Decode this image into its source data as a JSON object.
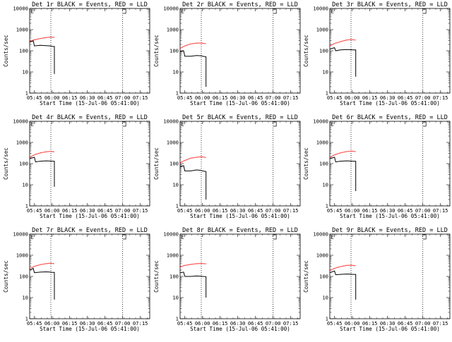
{
  "chart_data": {
    "type": "line",
    "layout": "3x3 grid of panels",
    "shared": {
      "xlabel": "Start Time (15-Jul-06 05:41:00)",
      "ylabel": "Counts/sec",
      "yscale": "log",
      "ylim": [
        1,
        10000
      ],
      "ytick_labels": [
        "1",
        "10",
        "100",
        "1000",
        "10000"
      ],
      "xlim": [
        "05:41",
        "07:23"
      ],
      "xtick_labels": [
        "05:45",
        "06:00",
        "06:15",
        "06:30",
        "06:45",
        "07:00",
        "07:15"
      ],
      "vlines": [
        "05:59",
        "07:00"
      ],
      "marker_label": "E",
      "marker_time": "07:00",
      "colors": {
        "events": "#000000",
        "lld": "#ff0000"
      }
    },
    "panels": [
      {
        "title": "Det 1r BLACK = Events, RED = LLD",
        "events": {
          "times": [
            "05:41",
            "05:43",
            "05:44",
            "05:45",
            "05:50",
            "05:55",
            "05:59",
            "06:00",
            "06:02",
            "06:02"
          ],
          "values": [
            260,
            280,
            300,
            170,
            180,
            175,
            170,
            160,
            160,
            8
          ]
        },
        "lld": {
          "times": [
            "05:41",
            "05:45",
            "05:50",
            "05:55",
            "05:59",
            "06:02"
          ],
          "values": [
            280,
            330,
            380,
            420,
            440,
            430
          ]
        }
      },
      {
        "title": "Det 2r BLACK = Events, RED = LLD",
        "events": {
          "times": [
            "05:41",
            "05:44",
            "05:45",
            "05:50",
            "05:55",
            "05:59",
            "06:00",
            "06:03",
            "06:03"
          ],
          "values": [
            90,
            100,
            55,
            55,
            60,
            58,
            55,
            52,
            2
          ]
        },
        "lld": {
          "times": [
            "05:41",
            "05:45",
            "05:50",
            "05:55",
            "05:59",
            "06:03"
          ],
          "values": [
            130,
            170,
            210,
            230,
            230,
            215
          ]
        }
      },
      {
        "title": "Det 3r BLACK = Events, RED = LLD",
        "events": {
          "times": [
            "05:41",
            "05:43",
            "05:45",
            "05:46",
            "05:50",
            "05:55",
            "05:59",
            "06:00",
            "06:03",
            "06:03"
          ],
          "values": [
            120,
            130,
            140,
            100,
            110,
            115,
            112,
            110,
            110,
            6
          ]
        },
        "lld": {
          "times": [
            "05:41",
            "05:45",
            "05:50",
            "05:55",
            "05:59",
            "06:03"
          ],
          "values": [
            170,
            220,
            270,
            320,
            340,
            320
          ]
        }
      },
      {
        "title": "Det 4r BLACK = Events, RED = LLD",
        "events": {
          "times": [
            "05:41",
            "05:43",
            "05:45",
            "05:46",
            "05:50",
            "05:55",
            "05:59",
            "06:00",
            "06:02",
            "06:02"
          ],
          "values": [
            170,
            185,
            200,
            120,
            130,
            135,
            132,
            130,
            130,
            8
          ]
        },
        "lld": {
          "times": [
            "05:41",
            "05:45",
            "05:50",
            "05:55",
            "05:59",
            "06:02"
          ],
          "values": [
            200,
            260,
            320,
            360,
            380,
            360
          ]
        }
      },
      {
        "title": "Det 5r BLACK = Events, RED = LLD",
        "events": {
          "times": [
            "05:41",
            "05:44",
            "05:45",
            "05:50",
            "05:55",
            "05:59",
            "06:00",
            "06:03",
            "06:03"
          ],
          "values": [
            70,
            80,
            45,
            45,
            50,
            48,
            45,
            42,
            2
          ]
        },
        "lld": {
          "times": [
            "05:41",
            "05:45",
            "05:50",
            "05:55",
            "05:59",
            "06:03"
          ],
          "values": [
            110,
            140,
            180,
            200,
            210,
            195
          ]
        }
      },
      {
        "title": "Det 6r BLACK = Events, RED = LLD",
        "events": {
          "times": [
            "05:41",
            "05:43",
            "05:45",
            "05:46",
            "05:50",
            "05:55",
            "05:59",
            "06:00",
            "06:03",
            "06:03"
          ],
          "values": [
            170,
            185,
            200,
            120,
            130,
            135,
            132,
            130,
            130,
            5
          ]
        },
        "lld": {
          "times": [
            "05:41",
            "05:45",
            "05:50",
            "05:55",
            "05:59",
            "06:03"
          ],
          "values": [
            200,
            260,
            320,
            370,
            390,
            370
          ]
        }
      },
      {
        "title": "Det 7r BLACK = Events, RED = LLD",
        "events": {
          "times": [
            "05:41",
            "05:43",
            "05:44",
            "05:45",
            "05:50",
            "05:55",
            "05:59",
            "06:00",
            "06:02",
            "06:02"
          ],
          "values": [
            200,
            220,
            240,
            150,
            160,
            165,
            160,
            155,
            155,
            8
          ]
        },
        "lld": {
          "times": [
            "05:41",
            "05:45",
            "05:50",
            "05:55",
            "05:59",
            "06:02"
          ],
          "values": [
            230,
            300,
            360,
            400,
            420,
            400
          ]
        }
      },
      {
        "title": "Det 8r BLACK = Events, RED = LLD",
        "events": {
          "times": [
            "05:41",
            "05:44",
            "05:45",
            "05:50",
            "05:55",
            "05:59",
            "06:00",
            "06:03",
            "06:03"
          ],
          "values": [
            150,
            160,
            100,
            100,
            105,
            102,
            100,
            98,
            10
          ]
        },
        "lld": {
          "times": [
            "05:41",
            "05:45",
            "05:50",
            "05:55",
            "05:59",
            "06:03"
          ],
          "values": [
            280,
            330,
            370,
            400,
            410,
            395
          ]
        }
      },
      {
        "title": "Det 9r BLACK = Events, RED = LLD",
        "events": {
          "times": [
            "05:41",
            "05:43",
            "05:45",
            "05:46",
            "05:50",
            "05:55",
            "05:59",
            "06:00",
            "06:03",
            "06:03"
          ],
          "values": [
            150,
            165,
            180,
            120,
            125,
            130,
            128,
            125,
            125,
            8
          ]
        },
        "lld": {
          "times": [
            "05:41",
            "05:45",
            "05:50",
            "05:55",
            "05:59",
            "06:03"
          ],
          "values": [
            190,
            240,
            290,
            330,
            340,
            320
          ]
        }
      }
    ]
  }
}
